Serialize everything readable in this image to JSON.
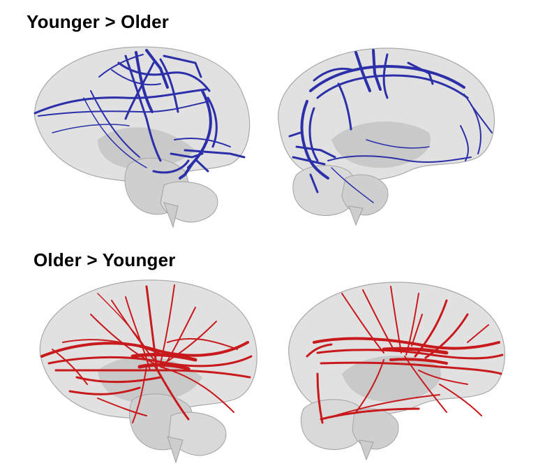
{
  "titles": {
    "top": "Younger > Older",
    "bottom": "Older > Younger"
  },
  "colors": {
    "background": "#ffffff",
    "brain_surface": "#d6d6d6",
    "brain_outline": "#9a9a9a",
    "subcortical": "#b8b8b8",
    "younger_gt_older_tracts": "#2b2fa8",
    "older_gt_younger_tracts": "#c8191c"
  },
  "panels": [
    {
      "group": "younger-gt-older",
      "view": "left-lateral"
    },
    {
      "group": "younger-gt-older",
      "view": "right-medial"
    },
    {
      "group": "older-gt-younger",
      "view": "left-lateral"
    },
    {
      "group": "older-gt-younger",
      "view": "right-medial"
    }
  ]
}
